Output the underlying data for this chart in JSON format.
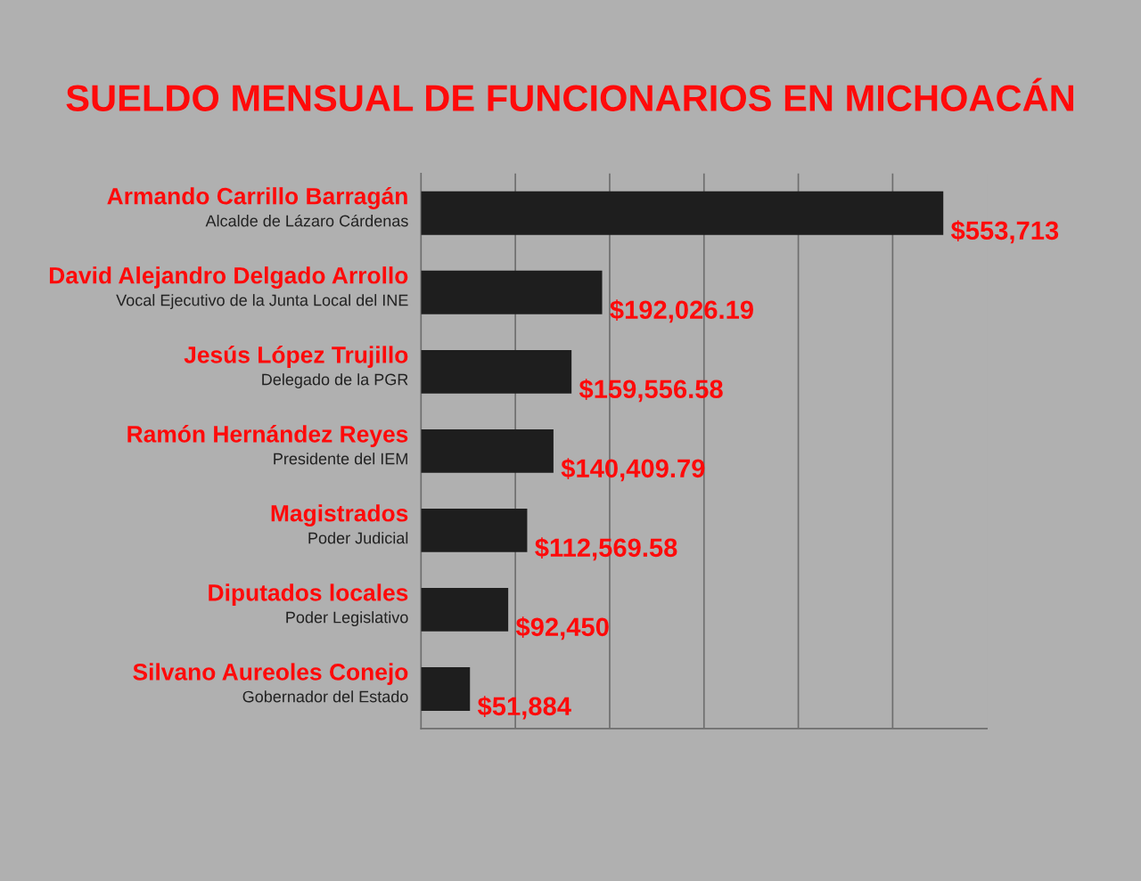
{
  "chart_data": {
    "type": "bar",
    "orientation": "horizontal",
    "title": "SUELDO MENSUAL DE FUNCIONARIOS EN MICHOACÁN",
    "categories": [
      "Armando Carrillo Barragán\nAlcalde de Lázaro Cárdenas",
      "David Alejandro Delgado Arrollo\nVocal Ejecutivo de la Junta Local del INE",
      "Jesús López Trujillo\nDelegado de la PGR",
      "Ramón Hernández Reyes\nPresidente del IEM",
      "Magistrados\nPoder Judicial",
      "Diputados locales\nPoder Legislativo",
      "Silvano Aureoles Conejo\nGobernador del Estado"
    ],
    "values": [
      553713,
      192026.19,
      159556.58,
      140409.79,
      112569.58,
      92450,
      51884
    ],
    "value_labels": [
      "$553,713",
      "$192,026.19",
      "$159,556.58",
      "$140,409.79",
      "$112,569.58",
      "$92,450",
      "$51,884"
    ],
    "color": "#1e1e1e",
    "xlim": [
      0,
      600000
    ],
    "xticks": [
      {
        "value": 100000,
        "label": null
      },
      {
        "value": 200000,
        "label": null
      },
      {
        "value": 300000,
        "label": null
      },
      {
        "value": 400000,
        "label": null
      },
      {
        "value": 500000,
        "label": null
      }
    ],
    "grid": "x",
    "tick_labels": "y",
    "legend": false
  }
}
